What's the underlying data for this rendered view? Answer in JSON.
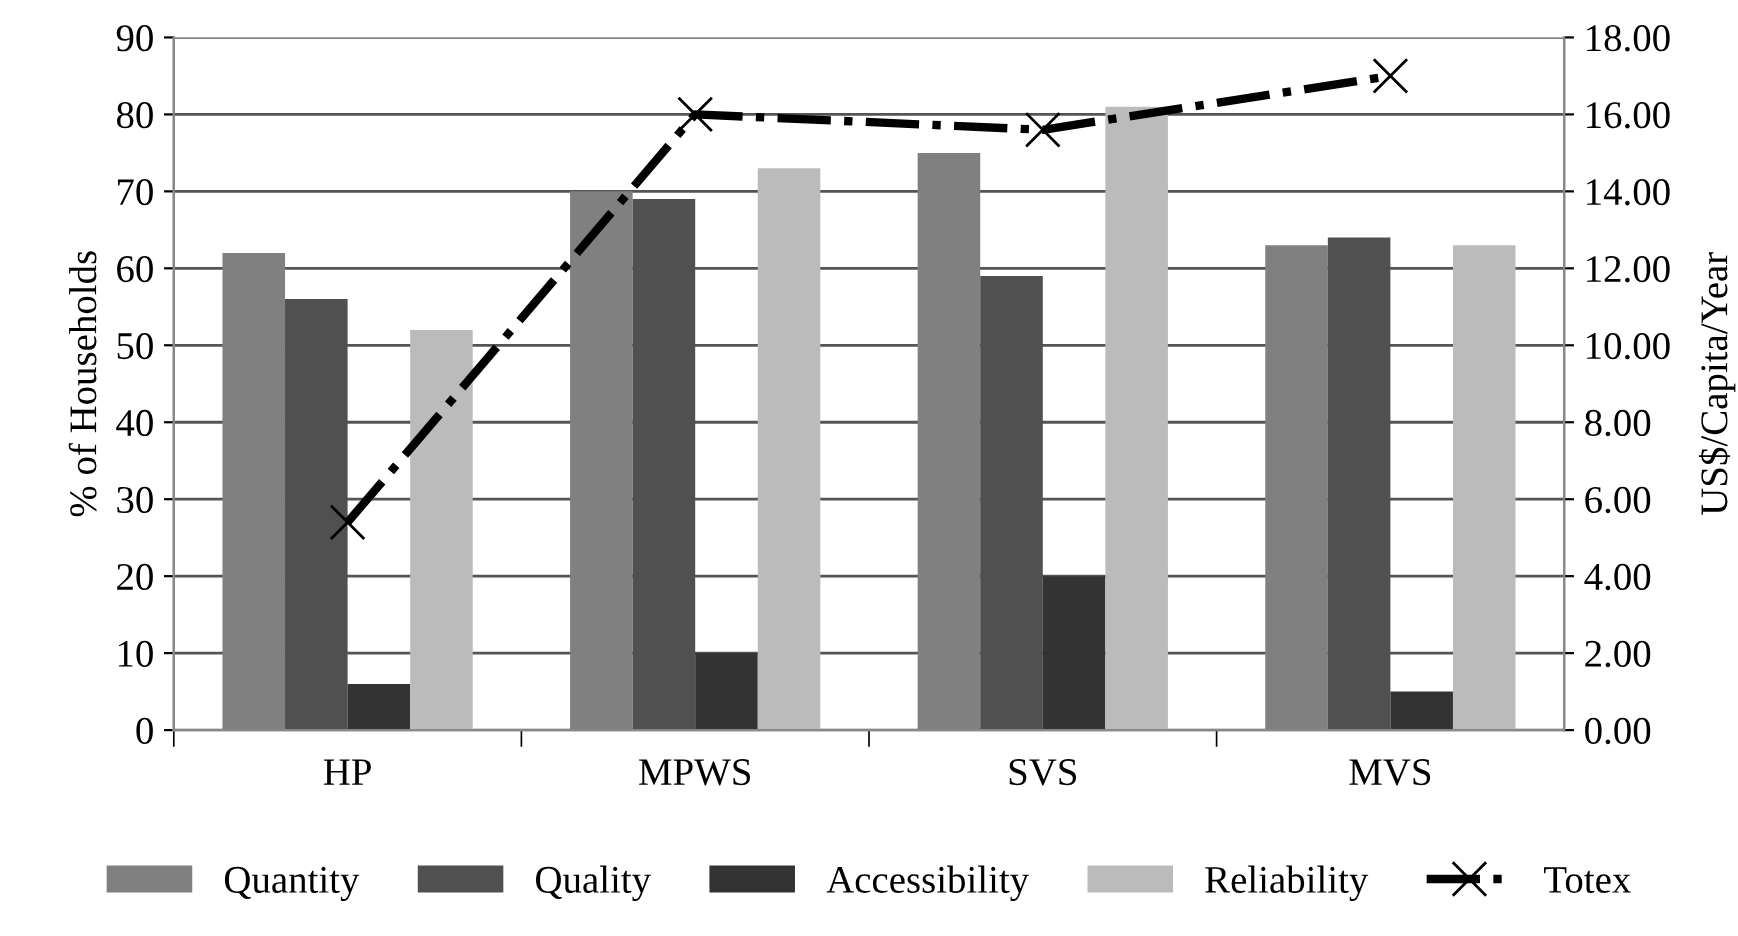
{
  "chart_data": {
    "type": "bar",
    "ylabel": "% of Households",
    "y2label": "US$/Capita/Year",
    "categories": [
      "HP",
      "MPWS",
      "SVS",
      "MVS"
    ],
    "series": [
      {
        "name": "Quantity",
        "color": "#808080",
        "values": [
          62,
          70,
          75,
          63
        ]
      },
      {
        "name": "Quality",
        "color": "#505050",
        "values": [
          56,
          69,
          59,
          64
        ]
      },
      {
        "name": "Accessibility",
        "color": "#333333",
        "values": [
          6,
          10,
          20,
          5
        ]
      },
      {
        "name": "Reliability",
        "color": "#bbbbbb",
        "values": [
          52,
          73,
          81,
          63
        ]
      },
      {
        "name": "Totex",
        "type": "line",
        "axis": "y2",
        "color": "#000000",
        "values": [
          5.4,
          16.0,
          15.6,
          17.0
        ],
        "marker": "cross",
        "line_style": "dashdot"
      }
    ],
    "ylim": [
      0,
      90
    ],
    "yticks": [
      0,
      10,
      20,
      30,
      40,
      50,
      60,
      70,
      80,
      90
    ],
    "y2lim": [
      0,
      18
    ],
    "y2ticks": [
      {
        "value": 0,
        "label": "0.00"
      },
      {
        "value": 2,
        "label": "2.00"
      },
      {
        "value": 4,
        "label": "4.00"
      },
      {
        "value": 6,
        "label": "6.00"
      },
      {
        "value": 8,
        "label": "8.00"
      },
      {
        "value": 10,
        "label": "10.00"
      },
      {
        "value": 12,
        "label": "12.00"
      },
      {
        "value": 14,
        "label": "14.00"
      },
      {
        "value": 16,
        "label": "16.00"
      },
      {
        "value": 18,
        "label": "18.00"
      }
    ],
    "grid": "y",
    "legend": "bottom"
  }
}
